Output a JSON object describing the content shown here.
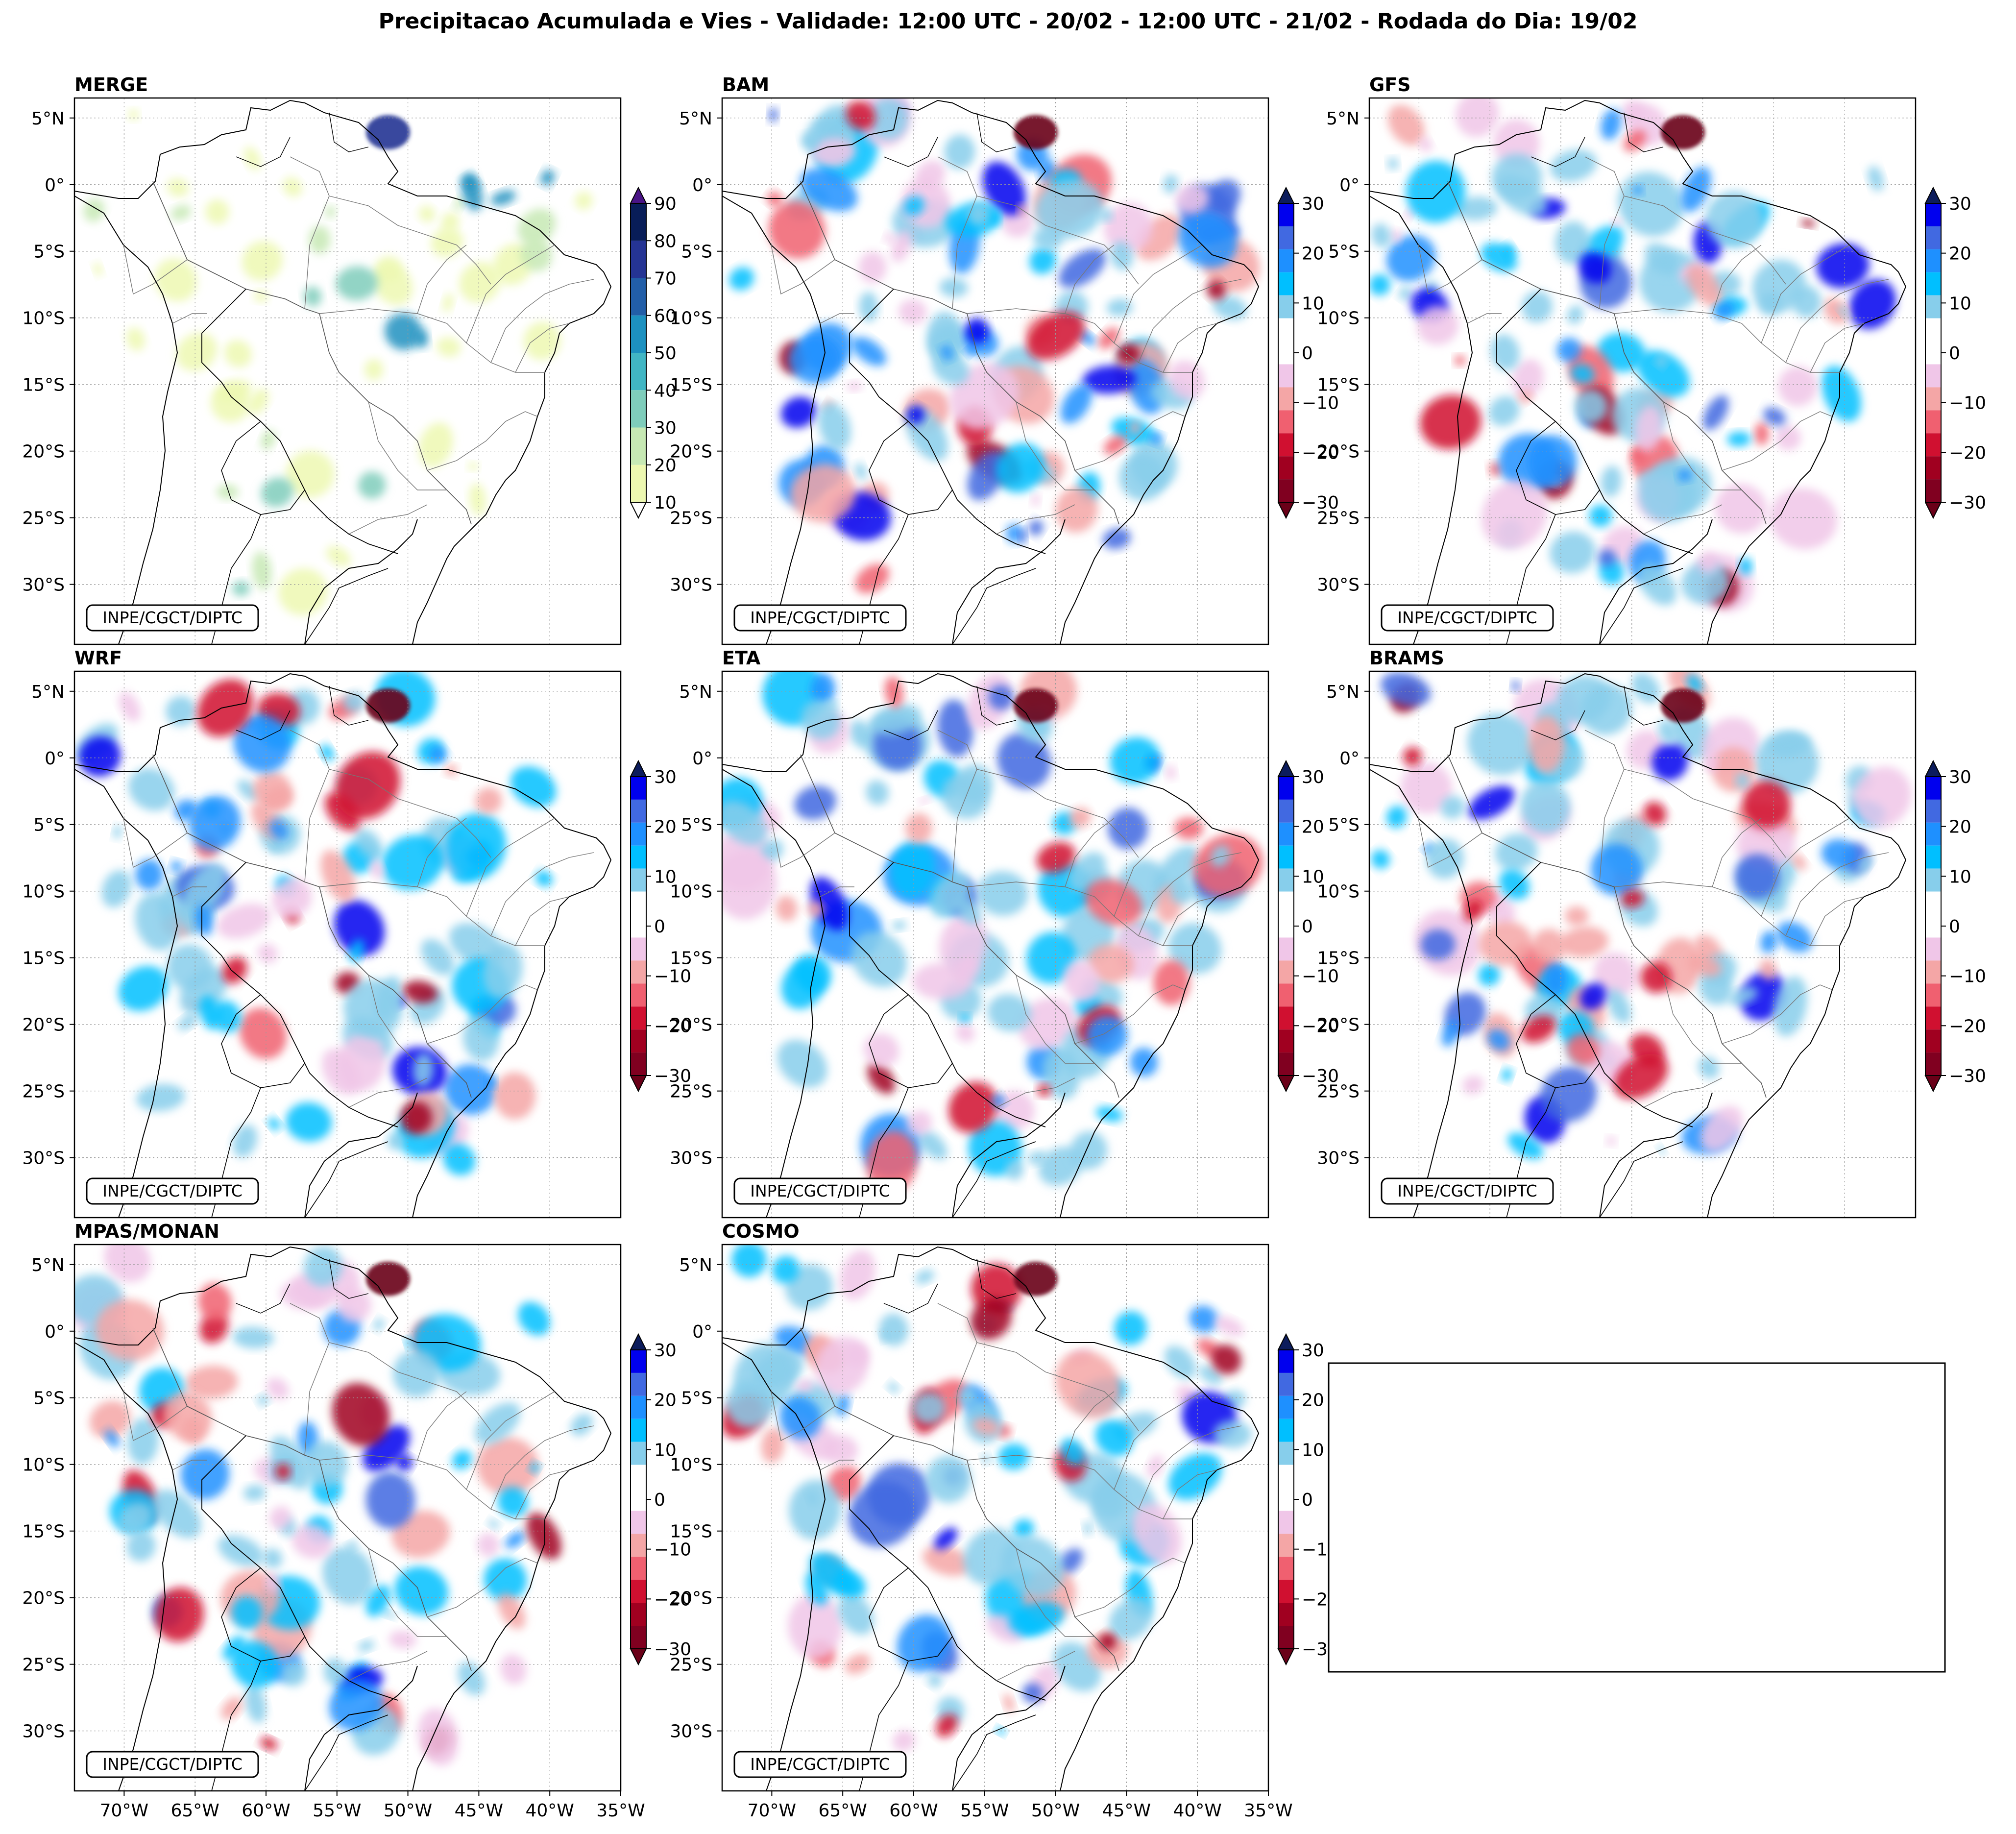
{
  "title": "Precipitacao Acumulada e Vies - Validade: 12:00 UTC - 20/02 - 12:00 UTC - 21/02 - Rodada do Dia: 19/02",
  "credit": "INPE/CGCT/DIPTC",
  "lat_ticks": [
    "5°N",
    "0°",
    "5°S",
    "10°S",
    "15°S",
    "20°S",
    "25°S",
    "30°S"
  ],
  "lon_ticks": [
    "70°W",
    "65°W",
    "60°W",
    "55°W",
    "50°W",
    "45°W",
    "40°W",
    "35°W"
  ],
  "precip_colorbar": {
    "ticks": [
      "10",
      "20",
      "30",
      "40",
      "50",
      "60",
      "70",
      "80",
      "90"
    ],
    "colors": [
      "#edf8b1",
      "#c7e9b4",
      "#7fcdbb",
      "#41b6c4",
      "#1d91c0",
      "#225ea8",
      "#253494",
      "#081d58"
    ],
    "under": "#ffffff",
    "over": "#4a1486"
  },
  "bias_colorbar": {
    "ticks": [
      "30",
      "20",
      "10",
      "0",
      "−10",
      "−20",
      "−30"
    ],
    "colors": [
      "#0000ee",
      "#4169e1",
      "#1e90ff",
      "#00bfff",
      "#87ceeb",
      "#ffffff",
      "#ffffff",
      "#f0c6e8",
      "#f4a6a6",
      "#f06070",
      "#d01030",
      "#a00020",
      "#800020"
    ],
    "over": "#0c1c5c",
    "under": "#6a0018"
  },
  "panels": [
    {
      "id": "merge",
      "label": "MERGE",
      "type": "precip"
    },
    {
      "id": "bam",
      "label": "BAM",
      "type": "bias"
    },
    {
      "id": "gfs",
      "label": "GFS",
      "type": "bias"
    },
    {
      "id": "wrf",
      "label": "WRF",
      "type": "bias"
    },
    {
      "id": "eta",
      "label": "ETA",
      "type": "bias"
    },
    {
      "id": "brams",
      "label": "BRAMS",
      "type": "bias"
    },
    {
      "id": "mpas",
      "label": "MPAS/MONAN",
      "type": "bias"
    },
    {
      "id": "cosmo",
      "label": "COSMO",
      "type": "bias"
    }
  ]
}
